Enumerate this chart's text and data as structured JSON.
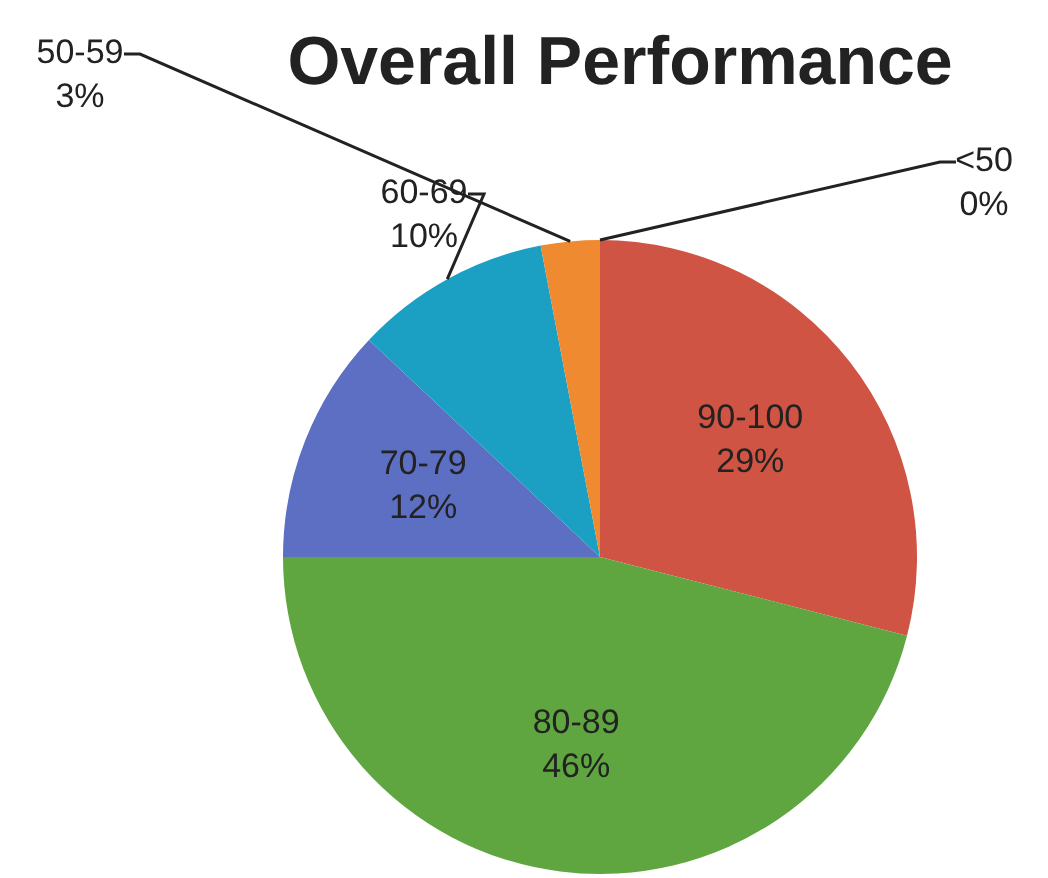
{
  "chart_data": {
    "type": "pie",
    "title": "Overall Performance",
    "categories": [
      "<50",
      "90-100",
      "80-89",
      "70-79",
      "60-69",
      "50-59"
    ],
    "values": [
      0,
      29,
      46,
      12,
      10,
      3
    ],
    "value_labels": [
      "0%",
      "29%",
      "46%",
      "12%",
      "10%",
      "3%"
    ],
    "colors": [
      "#8064a2",
      "#cf5444",
      "#5fa640",
      "#5c6fc2",
      "#1b9fc2",
      "#f08a30"
    ],
    "legend": false
  }
}
